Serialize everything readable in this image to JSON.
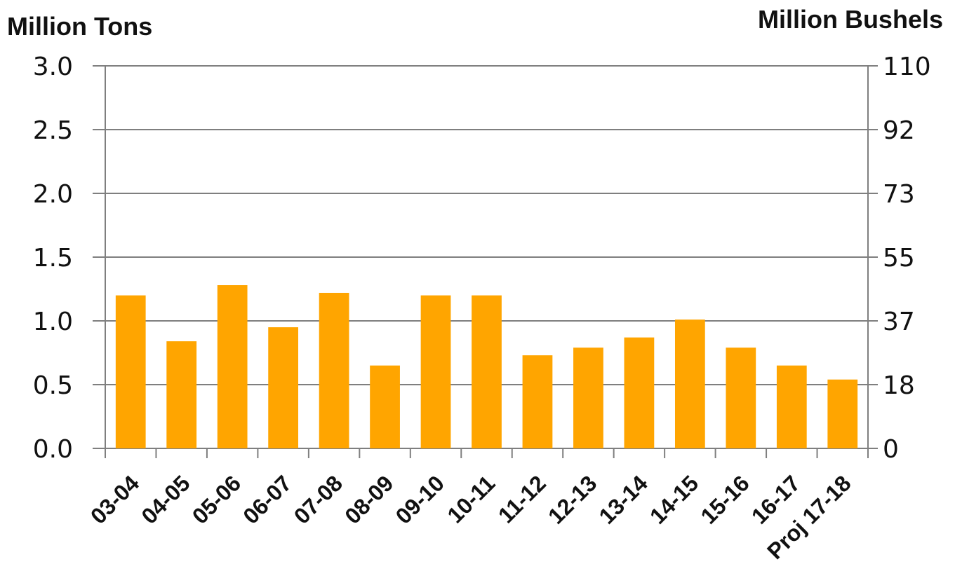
{
  "chart_data": {
    "type": "bar",
    "left_axis_title": "Million Tons",
    "right_axis_title": "Million Bushels",
    "categories": [
      "03-04",
      "04-05",
      "05-06",
      "06-07",
      "07-08",
      "08-09",
      "09-10",
      "10-11",
      "11-12",
      "12-13",
      "13-14",
      "14-15",
      "15-16",
      "16-17",
      "Proj 17-18"
    ],
    "values": [
      1.2,
      0.84,
      1.28,
      0.95,
      1.22,
      0.65,
      1.2,
      1.2,
      0.73,
      0.79,
      0.87,
      1.01,
      0.79,
      0.65,
      0.54
    ],
    "ylim": [
      0,
      3.0
    ],
    "y_ticks": [
      "0.0",
      "0.5",
      "1.0",
      "1.5",
      "2.0",
      "2.5",
      "3.0"
    ],
    "y2_ticks": [
      "0",
      "18",
      "37",
      "55",
      "73",
      "92",
      "110"
    ],
    "bar_color": "#ffa500",
    "grid": true,
    "legend": "none"
  }
}
